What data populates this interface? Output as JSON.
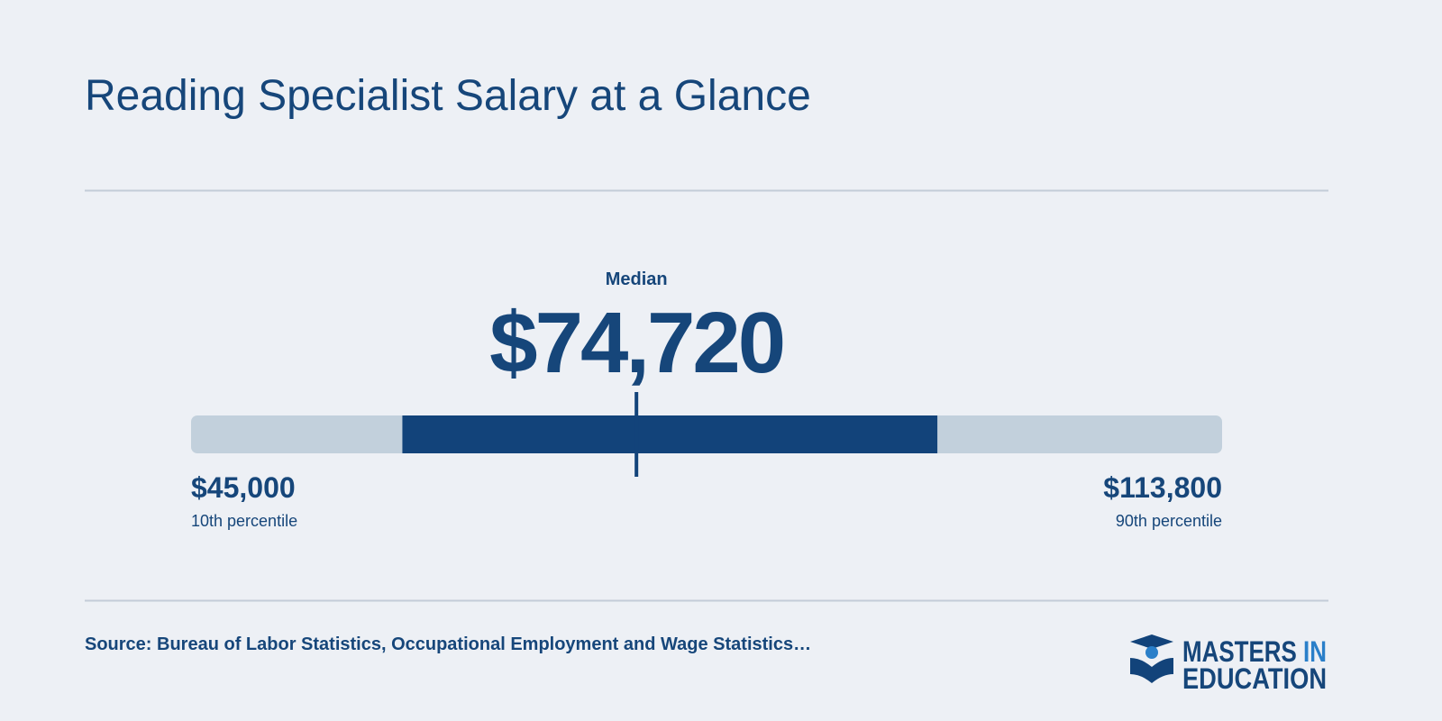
{
  "header": {
    "title": "Reading Specialist Salary at a Glance"
  },
  "range": {
    "low": {
      "value": 45000,
      "label": "$45,000",
      "caption": "10th percentile"
    },
    "high": {
      "value": 113800,
      "label": "$113,800",
      "caption": "90th percentile"
    },
    "median": {
      "caption": "Median",
      "value": 74720,
      "label": "$74,720"
    },
    "middle_band": [
      59100,
      94800
    ],
    "track_color": "#c2d0dc",
    "band_color": "#12437a"
  },
  "footer": {
    "source": "Source: Bureau of Labor Statistics, Occupational Employment and Wage Statistics…",
    "logo": [
      "MASTERS",
      "IN",
      "EDUCATION"
    ]
  }
}
